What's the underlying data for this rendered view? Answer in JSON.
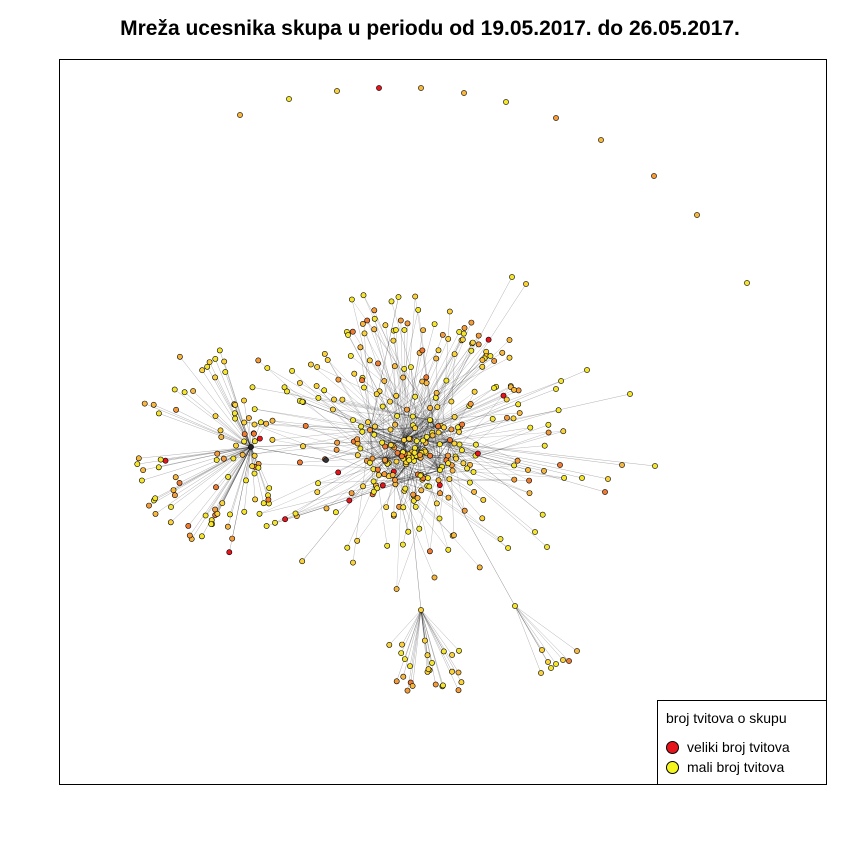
{
  "title": "Mreža ucesnika skupa u periodu od 19.05.2017. do 26.05.2017.",
  "legend": {
    "title": "broj tvitova o skupu",
    "items": [
      {
        "label": "veliki broj tvitova",
        "color": "#e8141c"
      },
      {
        "label": "mali broj tvitova",
        "color": "#f5f51e"
      }
    ]
  },
  "node_colors": [
    "#f5e52c",
    "#fbd23a",
    "#f8b83e",
    "#f59c3a",
    "#ef7a30",
    "#e8141c"
  ],
  "edge_color": "#000000"
}
